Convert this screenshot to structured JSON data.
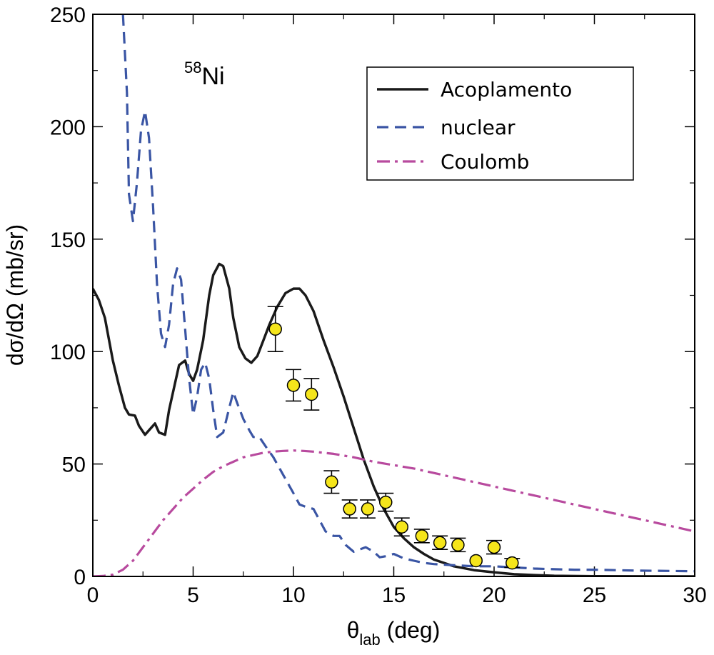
{
  "chart_data": {
    "type": "line",
    "annotation": {
      "sup": "58",
      "main": "Ni"
    },
    "xlabel": {
      "main": "θ",
      "sub": "lab",
      "suffix": " (deg)"
    },
    "ylabel": "dσ/dΩ (mb/sr)",
    "xlim": [
      0,
      30
    ],
    "ylim": [
      0,
      250
    ],
    "x_ticks": [
      0,
      5,
      10,
      15,
      20,
      25,
      30
    ],
    "y_ticks": [
      0,
      50,
      100,
      150,
      200,
      250
    ],
    "grid": false,
    "legend_position": "top-right",
    "series": [
      {
        "name": "Acoplamento",
        "style": "solid",
        "color": "#1a1a1a",
        "points": [
          [
            0,
            128
          ],
          [
            0.3,
            123
          ],
          [
            0.6,
            115
          ],
          [
            1,
            96
          ],
          [
            1.3,
            85
          ],
          [
            1.6,
            75
          ],
          [
            1.8,
            72
          ],
          [
            2.1,
            71.5
          ],
          [
            2.3,
            67
          ],
          [
            2.6,
            63
          ],
          [
            2.9,
            66
          ],
          [
            3.1,
            68
          ],
          [
            3.3,
            64
          ],
          [
            3.6,
            63
          ],
          [
            3.8,
            74
          ],
          [
            4.1,
            86
          ],
          [
            4.3,
            94
          ],
          [
            4.6,
            96
          ],
          [
            4.8,
            90
          ],
          [
            5.0,
            87
          ],
          [
            5.2,
            92
          ],
          [
            5.5,
            105
          ],
          [
            5.8,
            125
          ],
          [
            6.0,
            134
          ],
          [
            6.3,
            139
          ],
          [
            6.5,
            138
          ],
          [
            6.8,
            128
          ],
          [
            7.0,
            115
          ],
          [
            7.3,
            102
          ],
          [
            7.6,
            97
          ],
          [
            7.9,
            95
          ],
          [
            8.2,
            98
          ],
          [
            8.5,
            105
          ],
          [
            8.8,
            112
          ],
          [
            9.2,
            120
          ],
          [
            9.6,
            126
          ],
          [
            10.0,
            128
          ],
          [
            10.3,
            128
          ],
          [
            10.6,
            125
          ],
          [
            11.0,
            118
          ],
          [
            11.5,
            105
          ],
          [
            12.0,
            93
          ],
          [
            12.5,
            80
          ],
          [
            13.0,
            66
          ],
          [
            13.5,
            52
          ],
          [
            14.0,
            40
          ],
          [
            14.5,
            30
          ],
          [
            15.0,
            22
          ],
          [
            15.5,
            17
          ],
          [
            16.0,
            13
          ],
          [
            16.5,
            10
          ],
          [
            17.0,
            7.5
          ],
          [
            18.0,
            4.5
          ],
          [
            19.0,
            2.8
          ],
          [
            20.0,
            1.8
          ],
          [
            21.0,
            1.0
          ],
          [
            22.0,
            0.6
          ],
          [
            23.0,
            0.3
          ],
          [
            25.0,
            0.1
          ],
          [
            30.0,
            0.0
          ]
        ]
      },
      {
        "name": "nuclear",
        "style": "dashed",
        "color": "#3a55a4",
        "points": [
          [
            1.5,
            250
          ],
          [
            1.7,
            215
          ],
          [
            1.8,
            170
          ],
          [
            2.0,
            158
          ],
          [
            2.2,
            175
          ],
          [
            2.4,
            198
          ],
          [
            2.6,
            207
          ],
          [
            2.8,
            195
          ],
          [
            3.0,
            165
          ],
          [
            3.2,
            130
          ],
          [
            3.4,
            108
          ],
          [
            3.6,
            102
          ],
          [
            3.8,
            112
          ],
          [
            4.0,
            130
          ],
          [
            4.2,
            137
          ],
          [
            4.4,
            132
          ],
          [
            4.6,
            110
          ],
          [
            4.8,
            88
          ],
          [
            5.0,
            72
          ],
          [
            5.2,
            80
          ],
          [
            5.4,
            92
          ],
          [
            5.6,
            95
          ],
          [
            5.8,
            88
          ],
          [
            6.0,
            74
          ],
          [
            6.2,
            62
          ],
          [
            6.5,
            64
          ],
          [
            6.8,
            75
          ],
          [
            7.0,
            82
          ],
          [
            7.2,
            77
          ],
          [
            7.5,
            70
          ],
          [
            7.8,
            65
          ],
          [
            8.0,
            62
          ],
          [
            8.3,
            62
          ],
          [
            8.6,
            58
          ],
          [
            9.0,
            53
          ],
          [
            9.5,
            45
          ],
          [
            10.0,
            37
          ],
          [
            10.3,
            32
          ],
          [
            10.6,
            31
          ],
          [
            11.0,
            30
          ],
          [
            11.3,
            25
          ],
          [
            11.6,
            20
          ],
          [
            12.0,
            18
          ],
          [
            12.3,
            18
          ],
          [
            12.6,
            14
          ],
          [
            13.0,
            11
          ],
          [
            13.3,
            12
          ],
          [
            13.6,
            13
          ],
          [
            14.0,
            11
          ],
          [
            14.3,
            8.5
          ],
          [
            14.6,
            9
          ],
          [
            15.0,
            10
          ],
          [
            15.5,
            8
          ],
          [
            16.0,
            7
          ],
          [
            16.5,
            6
          ],
          [
            17.0,
            5.5
          ],
          [
            18.0,
            5
          ],
          [
            19.0,
            4.5
          ],
          [
            20.0,
            4.5
          ],
          [
            21.0,
            4
          ],
          [
            22.0,
            3.5
          ],
          [
            23.0,
            3.2
          ],
          [
            24.0,
            3
          ],
          [
            25.0,
            3
          ],
          [
            26.0,
            2.8
          ],
          [
            27.0,
            2.6
          ],
          [
            28.0,
            2.5
          ],
          [
            29.0,
            2.4
          ],
          [
            30.0,
            2.3
          ]
        ]
      },
      {
        "name": "Coulomb",
        "style": "dashdot",
        "color": "#b84a9e",
        "points": [
          [
            0,
            0
          ],
          [
            0.5,
            0.2
          ],
          [
            1.0,
            0.8
          ],
          [
            1.5,
            3
          ],
          [
            2.0,
            7
          ],
          [
            2.5,
            13
          ],
          [
            3.0,
            19
          ],
          [
            3.5,
            25
          ],
          [
            4.0,
            30
          ],
          [
            4.5,
            35
          ],
          [
            5.0,
            39
          ],
          [
            5.5,
            43
          ],
          [
            6.0,
            46.5
          ],
          [
            6.5,
            49
          ],
          [
            7.0,
            51
          ],
          [
            7.5,
            53
          ],
          [
            8.0,
            54
          ],
          [
            8.5,
            55
          ],
          [
            9.0,
            55.5
          ],
          [
            9.5,
            55.8
          ],
          [
            10.0,
            56
          ],
          [
            10.5,
            55.8
          ],
          [
            11.0,
            55.5
          ],
          [
            11.5,
            55
          ],
          [
            12.0,
            54.5
          ],
          [
            13.0,
            53
          ],
          [
            14.0,
            51
          ],
          [
            15.0,
            49.5
          ],
          [
            16.0,
            48
          ],
          [
            17.0,
            46
          ],
          [
            18.0,
            44
          ],
          [
            19.0,
            42
          ],
          [
            20.0,
            40
          ],
          [
            21.0,
            38
          ],
          [
            22.0,
            36
          ],
          [
            23.0,
            34
          ],
          [
            24.0,
            32
          ],
          [
            25.0,
            30
          ],
          [
            26.0,
            28
          ],
          [
            27.0,
            26
          ],
          [
            28.0,
            24
          ],
          [
            29.0,
            22
          ],
          [
            30.0,
            20
          ]
        ]
      }
    ],
    "data_points": {
      "color": "#f5e51b",
      "points": [
        {
          "x": 9.1,
          "y": 110,
          "err": 10
        },
        {
          "x": 10.0,
          "y": 85,
          "err": 7
        },
        {
          "x": 10.9,
          "y": 81,
          "err": 7
        },
        {
          "x": 11.9,
          "y": 42,
          "err": 5
        },
        {
          "x": 12.8,
          "y": 30,
          "err": 4
        },
        {
          "x": 13.7,
          "y": 30,
          "err": 4
        },
        {
          "x": 14.6,
          "y": 33,
          "err": 4
        },
        {
          "x": 15.4,
          "y": 22,
          "err": 4
        },
        {
          "x": 16.4,
          "y": 18,
          "err": 3
        },
        {
          "x": 17.3,
          "y": 15,
          "err": 3
        },
        {
          "x": 18.2,
          "y": 14,
          "err": 3
        },
        {
          "x": 19.1,
          "y": 7,
          "err": 0
        },
        {
          "x": 20.0,
          "y": 13,
          "err": 3
        },
        {
          "x": 20.9,
          "y": 6,
          "err": 2
        }
      ]
    }
  }
}
